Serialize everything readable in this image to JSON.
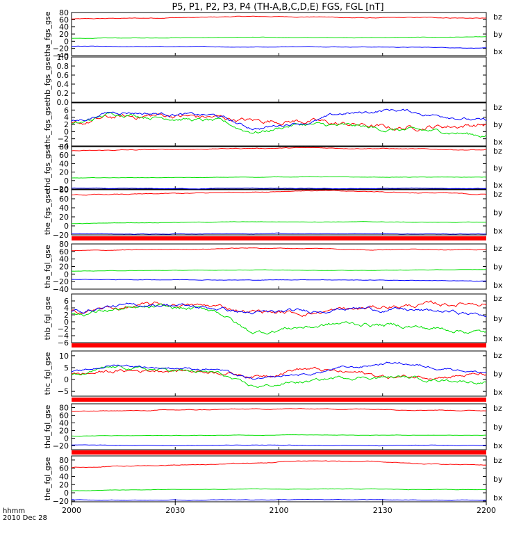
{
  "title": "P5, P1, P2, P3, P4 (TH-A,B,C,D,E) FGS, FGL [nT]",
  "footer": {
    "row1": "hhmm",
    "row2": "2010 Dec 28"
  },
  "x_axis": {
    "ticks": [
      "2000",
      "2030",
      "2100",
      "2130",
      "2200"
    ]
  },
  "colors": {
    "bx": "#0000ff",
    "by": "#00e000",
    "bz": "#ff0000",
    "bar": "#ff0000"
  },
  "chart_data": {
    "type": "line",
    "x_range": [
      "2000",
      "2200"
    ],
    "panels": [
      {
        "ylabel": "tha_fgs_gse",
        "ylim": [
          -40,
          80
        ],
        "yticks": [
          "80",
          "60",
          "40",
          "20",
          "0",
          "−20",
          "−40"
        ],
        "series": [
          {
            "name": "bz",
            "levels": [
              62,
              64,
              66,
              69,
              68,
              65,
              66,
              64
            ],
            "noise": 1.2
          },
          {
            "name": "by",
            "levels": [
              8,
              9,
              10,
              11,
              10,
              10,
              11,
              12
            ],
            "noise": 0.6
          },
          {
            "name": "bx",
            "levels": [
              -14,
              -15,
              -15,
              -16,
              -15,
              -16,
              -17,
              -19
            ],
            "noise": 0.8
          }
        ]
      },
      {
        "ylabel": "thb_fgs_gse",
        "ylim": [
          0,
          1
        ],
        "yticks": [
          "1.0",
          "0.8",
          "0.6",
          "0.4",
          "0.2",
          "0.0"
        ],
        "series": []
      },
      {
        "ylabel": "thc_fgs_gse",
        "ylim": [
          -4,
          8
        ],
        "yticks": [
          "6",
          "4",
          "2",
          "0",
          "−2",
          "−4"
        ],
        "series": [
          {
            "name": "bz",
            "levels": [
              2,
              4,
              4.5,
              4,
              3,
              3,
              2,
              1,
              1.5,
              2
            ],
            "noise": 0.9
          },
          {
            "name": "by",
            "levels": [
              2,
              5,
              4,
              3,
              0,
              2,
              1.5,
              0.5,
              0,
              -1
            ],
            "noise": 0.7
          },
          {
            "name": "bx",
            "levels": [
              3,
              5.5,
              5,
              4.5,
              1,
              2.5,
              5,
              6,
              4.5,
              3
            ],
            "noise": 0.6
          }
        ]
      },
      {
        "ylabel": "thd_fgs_gse",
        "ylim": [
          -20,
          80
        ],
        "yticks": [
          "80",
          "60",
          "40",
          "20",
          "0",
          "−20"
        ],
        "series": [
          {
            "name": "bz",
            "levels": [
              70,
              72,
              74,
              76,
              77,
              76,
              74,
              72
            ],
            "noise": 1.2
          },
          {
            "name": "by",
            "levels": [
              6,
              7,
              7,
              8,
              9,
              8,
              8,
              8
            ],
            "noise": 0.6
          },
          {
            "name": "bx",
            "levels": [
              -18,
              -19,
              -19,
              -18,
              -19,
              -19,
              -18,
              -19
            ],
            "noise": 0.8
          }
        ]
      },
      {
        "ylabel": "the_fgs_gse",
        "ylim": [
          -20,
          80
        ],
        "yticks": [
          "80",
          "60",
          "40",
          "20",
          "0",
          "−20"
        ],
        "series": [
          {
            "name": "bz",
            "levels": [
              68,
              70,
              72,
              75,
              78,
              76,
              73,
              70
            ],
            "noise": 1.2
          },
          {
            "name": "by",
            "levels": [
              5,
              7,
              8,
              9,
              9,
              9,
              8,
              8
            ],
            "noise": 0.6
          },
          {
            "name": "bx",
            "levels": [
              -17,
              -18,
              -18,
              -17,
              -17,
              -17,
              -18,
              -18
            ],
            "noise": 0.8
          }
        ]
      },
      {
        "ylabel": "tha_fgl_gse",
        "ylim": [
          -40,
          80
        ],
        "yticks": [
          "80",
          "60",
          "40",
          "20",
          "0",
          "−20",
          "−40"
        ],
        "series": [
          {
            "name": "bz",
            "levels": [
              62,
              64,
              66,
              69,
              68,
              65,
              66,
              64
            ],
            "noise": 1.2
          },
          {
            "name": "by",
            "levels": [
              8,
              9,
              10,
              11,
              10,
              10,
              11,
              12
            ],
            "noise": 0.6
          },
          {
            "name": "bx",
            "levels": [
              -14,
              -15,
              -15,
              -16,
              -15,
              -16,
              -17,
              -19
            ],
            "noise": 0.8
          }
        ]
      },
      {
        "ylabel": "thb_fgl_gse",
        "ylim": [
          -6,
          8
        ],
        "yticks": [
          "6",
          "4",
          "2",
          "0",
          "−2",
          "−4",
          "−6"
        ],
        "series": [
          {
            "name": "bz",
            "levels": [
              3,
              4,
              5,
              4.5,
              3,
              2.5,
              3.5,
              4.5,
              5,
              5.5
            ],
            "noise": 0.8
          },
          {
            "name": "by",
            "levels": [
              2,
              3.5,
              4,
              3.5,
              -3,
              -1.5,
              -0.5,
              -1,
              -2,
              -3
            ],
            "noise": 0.8
          },
          {
            "name": "bx",
            "levels": [
              3,
              4.5,
              5,
              4,
              2.5,
              3,
              4,
              3.5,
              3,
              2
            ],
            "noise": 0.7
          }
        ]
      },
      {
        "ylabel": "thc_fgl_gse",
        "ylim": [
          -7,
          12
        ],
        "yticks": [
          "10",
          "5",
          "0",
          "−5"
        ],
        "series": [
          {
            "name": "bz",
            "levels": [
              2,
              3.5,
              4,
              3.5,
              1.5,
              4.5,
              3,
              1,
              1.5,
              2
            ],
            "noise": 1.0
          },
          {
            "name": "by",
            "levels": [
              1.5,
              5,
              4,
              3,
              -3,
              -1,
              1,
              1,
              0,
              -1
            ],
            "noise": 0.9
          },
          {
            "name": "bx",
            "levels": [
              3,
              6,
              5,
              4.5,
              0,
              2,
              5,
              7,
              5,
              3
            ],
            "noise": 0.7
          }
        ]
      },
      {
        "ylabel": "thd_fgl_gse",
        "ylim": [
          -30,
          90
        ],
        "yticks": [
          "80",
          "60",
          "40",
          "20",
          "0",
          "−20"
        ],
        "series": [
          {
            "name": "bz",
            "levels": [
              70,
              72,
              74,
              76,
              77,
              76,
              74,
              72
            ],
            "noise": 1.2
          },
          {
            "name": "by",
            "levels": [
              6,
              7,
              7,
              8,
              9,
              8,
              8,
              8
            ],
            "noise": 0.6
          },
          {
            "name": "bx",
            "levels": [
              -18,
              -19,
              -19,
              -18,
              -19,
              -19,
              -18,
              -19
            ],
            "noise": 0.8
          }
        ]
      },
      {
        "ylabel": "the_fgl_gse",
        "ylim": [
          -22,
          90
        ],
        "yticks": [
          "80",
          "60",
          "40",
          "20",
          "0",
          "−20"
        ],
        "series": [
          {
            "name": "bz",
            "levels": [
              62,
              65,
              68,
              72,
              78,
              76,
              70,
              68
            ],
            "noise": 1.2
          },
          {
            "name": "by",
            "levels": [
              5,
              7,
              8,
              9,
              9,
              9,
              8,
              8
            ],
            "noise": 0.6
          },
          {
            "name": "bx",
            "levels": [
              -17,
              -18,
              -18,
              -17,
              -17,
              -17,
              -18,
              -18
            ],
            "noise": 0.8
          }
        ]
      }
    ]
  }
}
